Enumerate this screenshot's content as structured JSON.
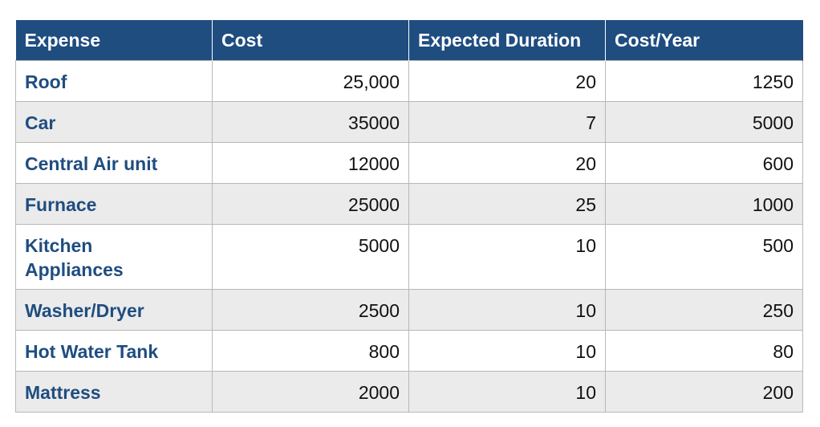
{
  "table": {
    "headers": [
      "Expense",
      "Cost",
      "Expected Duration",
      "Cost/Year"
    ],
    "rows": [
      {
        "expense": "Roof",
        "cost": "25,000",
        "duration": "20",
        "cost_year": "1250"
      },
      {
        "expense": "Car",
        "cost": "35000",
        "duration": "7",
        "cost_year": "5000"
      },
      {
        "expense": "Central Air unit",
        "cost": "12000",
        "duration": "20",
        "cost_year": "600"
      },
      {
        "expense": "Furnace",
        "cost": "25000",
        "duration": "25",
        "cost_year": "1000"
      },
      {
        "expense": "Kitchen Appliances",
        "cost": "5000",
        "duration": "10",
        "cost_year": "500"
      },
      {
        "expense": "Washer/Dryer",
        "cost": "2500",
        "duration": "10",
        "cost_year": "250"
      },
      {
        "expense": "Hot Water Tank",
        "cost": "800",
        "duration": "10",
        "cost_year": "80"
      },
      {
        "expense": "Mattress",
        "cost": "2000",
        "duration": "10",
        "cost_year": "200"
      }
    ]
  },
  "colors": {
    "header_bg": "#1f4d80",
    "header_text": "#ffffff",
    "name_text": "#1f4d80",
    "stripe": "#ebebeb"
  }
}
